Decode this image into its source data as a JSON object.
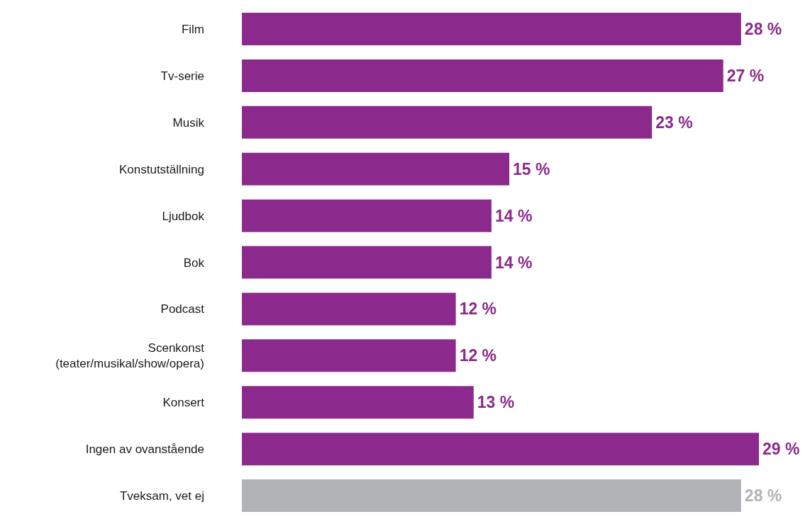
{
  "chart_data": {
    "type": "bar",
    "orientation": "horizontal",
    "categories": [
      "Film",
      "Tv-serie",
      "Musik",
      "Konstutställning",
      "Ljudbok",
      "Bok",
      "Podcast",
      "Scenkonst (teater/musikal/show/opera)",
      "Konsert",
      "Ingen av ovanstående",
      "Tveksam, vet ej"
    ],
    "values": [
      28,
      27,
      23,
      15,
      14,
      14,
      12,
      12,
      13,
      29,
      28
    ],
    "colors": [
      "#8b2a8c",
      "#8b2a8c",
      "#8b2a8c",
      "#8b2a8c",
      "#8b2a8c",
      "#8b2a8c",
      "#8b2a8c",
      "#8b2a8c",
      "#8b2a8c",
      "#8b2a8c",
      "#b1b3b6"
    ],
    "value_labels": [
      "28 %",
      "27 %",
      "23 %",
      "15 %",
      "14 %",
      "14 %",
      "12 %",
      "12 %",
      "13 %",
      "29 %",
      "28 %"
    ],
    "xlim": [
      0,
      29
    ],
    "tick_labels": "y",
    "grid": false,
    "legend": false
  }
}
